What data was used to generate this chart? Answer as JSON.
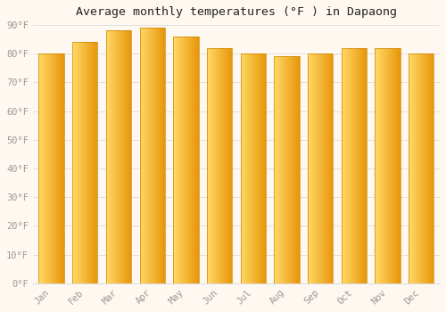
{
  "title": "Average monthly temperatures (°F ) in Dapaong",
  "months": [
    "Jan",
    "Feb",
    "Mar",
    "Apr",
    "May",
    "Jun",
    "Jul",
    "Aug",
    "Sep",
    "Oct",
    "Nov",
    "Dec"
  ],
  "values": [
    80,
    84,
    88,
    89,
    86,
    82,
    80,
    79,
    80,
    82,
    82,
    80
  ],
  "bar_color_left": "#FFD966",
  "bar_color_right": "#E8960A",
  "edge_color": "#C8860A",
  "background_color": "#FFF8F0",
  "grid_color": "#DDDDDD",
  "tick_label_color": "#999999",
  "title_color": "#222222",
  "ylim": [
    0,
    90
  ],
  "yticks": [
    0,
    10,
    20,
    30,
    40,
    50,
    60,
    70,
    80,
    90
  ],
  "ytick_labels": [
    "0°F",
    "10°F",
    "20°F",
    "30°F",
    "40°F",
    "50°F",
    "60°F",
    "70°F",
    "80°F",
    "90°F"
  ],
  "figsize": [
    5.0,
    3.5
  ],
  "dpi": 100,
  "bar_width": 0.75
}
